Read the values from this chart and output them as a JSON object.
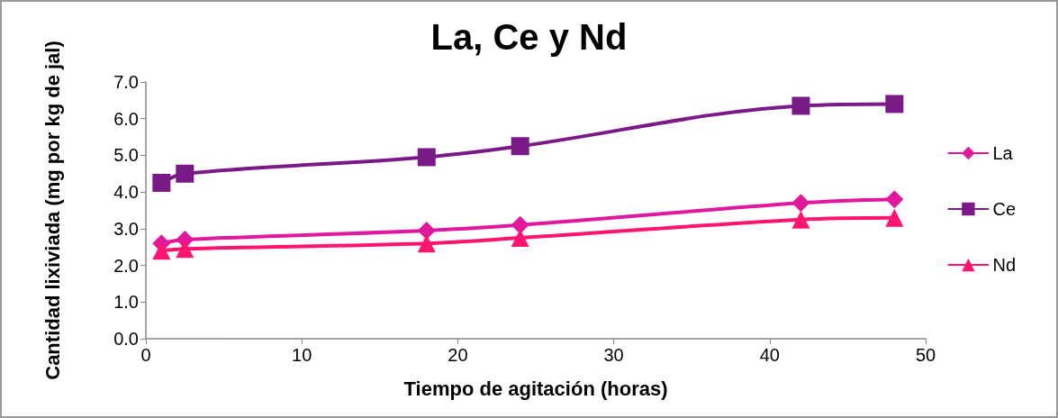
{
  "chart_data": {
    "type": "line",
    "title": "La, Ce y Nd",
    "xlabel": "Tiempo de agitación (horas)",
    "ylabel": "Cantidad lixiviada (mg por kg de jal)",
    "x": [
      1,
      2.5,
      18,
      24,
      42,
      48
    ],
    "series": [
      {
        "name": "La",
        "color": "#e0189c",
        "marker": "diamond",
        "values": [
          2.6,
          2.7,
          2.95,
          3.1,
          3.7,
          3.8
        ]
      },
      {
        "name": "Ce",
        "color": "#7a1a86",
        "marker": "square",
        "values": [
          4.25,
          4.5,
          4.95,
          5.25,
          6.35,
          6.4
        ]
      },
      {
        "name": "Nd",
        "color": "#ff1470",
        "marker": "triangle",
        "values": [
          2.4,
          2.45,
          2.6,
          2.75,
          3.25,
          3.3
        ]
      }
    ],
    "xlim": [
      0,
      50
    ],
    "xticks": [
      0,
      10,
      20,
      30,
      40,
      50
    ],
    "ylim": [
      0,
      7
    ],
    "yticks": [
      {
        "value": 0,
        "label": "0.0"
      },
      {
        "value": 1,
        "label": "1.0"
      },
      {
        "value": 2,
        "label": "2.0"
      },
      {
        "value": 3,
        "label": "3.0"
      },
      {
        "value": 4,
        "label": "4.0"
      },
      {
        "value": 5,
        "label": "5.0"
      },
      {
        "value": 6,
        "label": "6.0"
      },
      {
        "value": 7,
        "label": "7.0"
      }
    ],
    "grid": false,
    "legend": "right"
  }
}
